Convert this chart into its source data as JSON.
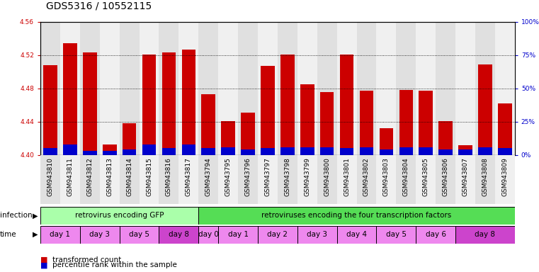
{
  "title": "GDS5316 / 10552115",
  "samples": [
    "GSM943810",
    "GSM943811",
    "GSM943812",
    "GSM943813",
    "GSM943814",
    "GSM943815",
    "GSM943816",
    "GSM943817",
    "GSM943794",
    "GSM943795",
    "GSM943796",
    "GSM943797",
    "GSM943798",
    "GSM943799",
    "GSM943800",
    "GSM943801",
    "GSM943802",
    "GSM943803",
    "GSM943804",
    "GSM943805",
    "GSM943806",
    "GSM943807",
    "GSM943808",
    "GSM943809"
  ],
  "transformed_counts": [
    4.508,
    4.534,
    4.523,
    4.413,
    4.438,
    4.521,
    4.523,
    4.527,
    4.473,
    4.441,
    4.451,
    4.507,
    4.521,
    4.485,
    4.476,
    4.521,
    4.477,
    4.432,
    4.478,
    4.477,
    4.441,
    4.412,
    4.509,
    4.462
  ],
  "percentile_ranks": [
    5,
    8,
    3,
    3,
    4,
    8,
    5,
    8,
    5,
    6,
    4,
    5,
    6,
    6,
    6,
    5,
    6,
    4,
    6,
    6,
    4,
    4,
    6,
    5
  ],
  "ylim_left": [
    4.4,
    4.56
  ],
  "ylim_right": [
    0,
    100
  ],
  "yticks_left": [
    4.4,
    4.44,
    4.48,
    4.52,
    4.56
  ],
  "yticks_right": [
    0,
    25,
    50,
    75,
    100
  ],
  "bar_color_red": "#cc0000",
  "bar_color_blue": "#0000cc",
  "bar_width": 0.7,
  "infection_groups": [
    {
      "label": "retrovirus encoding GFP",
      "start": 0,
      "end": 8,
      "color": "#aaffaa"
    },
    {
      "label": "retroviruses encoding the four transcription factors",
      "start": 8,
      "end": 24,
      "color": "#55dd55"
    }
  ],
  "time_groups": [
    {
      "label": "day 1",
      "start": 0,
      "end": 2,
      "color": "#ee88ee"
    },
    {
      "label": "day 3",
      "start": 2,
      "end": 4,
      "color": "#ee88ee"
    },
    {
      "label": "day 5",
      "start": 4,
      "end": 6,
      "color": "#ee88ee"
    },
    {
      "label": "day 8",
      "start": 6,
      "end": 8,
      "color": "#cc44cc"
    },
    {
      "label": "day 0",
      "start": 8,
      "end": 9,
      "color": "#ee88ee"
    },
    {
      "label": "day 1",
      "start": 9,
      "end": 11,
      "color": "#ee88ee"
    },
    {
      "label": "day 2",
      "start": 11,
      "end": 13,
      "color": "#ee88ee"
    },
    {
      "label": "day 3",
      "start": 13,
      "end": 15,
      "color": "#ee88ee"
    },
    {
      "label": "day 4",
      "start": 15,
      "end": 17,
      "color": "#ee88ee"
    },
    {
      "label": "day 5",
      "start": 17,
      "end": 19,
      "color": "#ee88ee"
    },
    {
      "label": "day 6",
      "start": 19,
      "end": 21,
      "color": "#ee88ee"
    },
    {
      "label": "day 8",
      "start": 21,
      "end": 24,
      "color": "#cc44cc"
    }
  ],
  "col_colors": [
    "#e0e0e0",
    "#f0f0f0"
  ],
  "legend_items": [
    {
      "label": "transformed count",
      "color": "#cc0000"
    },
    {
      "label": "percentile rank within the sample",
      "color": "#0000cc"
    }
  ],
  "bg_color": "#ffffff",
  "title_fontsize": 10,
  "tick_fontsize": 6.5,
  "annot_fontsize": 7.5
}
